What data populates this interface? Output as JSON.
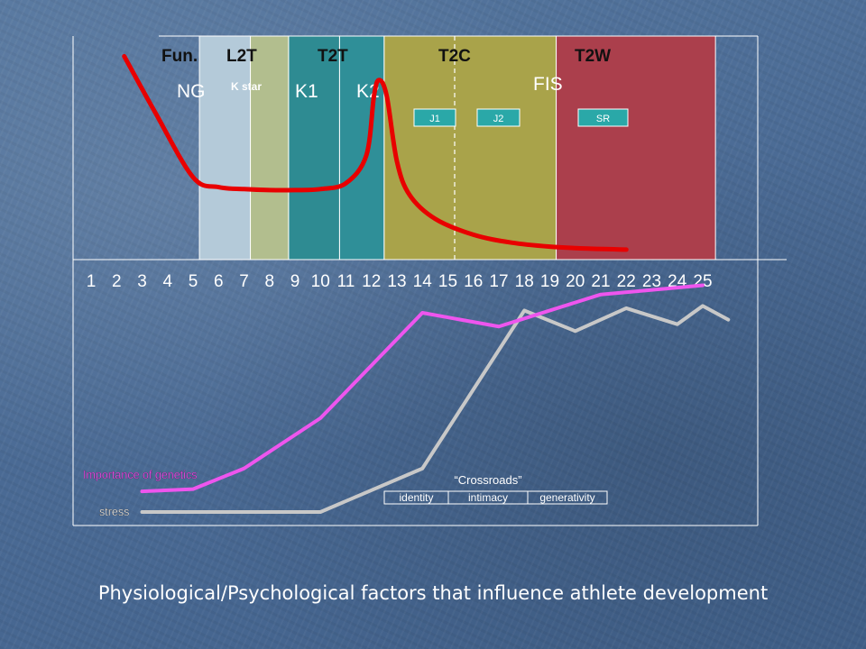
{
  "caption": "Physiological/Psychological factors that influence athlete development",
  "colors": {
    "NG": "#b4cad9",
    "Kstar": "#b2be8e",
    "K1": "#2e8b92",
    "K2": "#2f8f98",
    "T2C": "#a9a34a",
    "T2W": "#ab3f4c",
    "red_curve": "#e80000",
    "genetics": "#ee55ee",
    "stress": "#c8c8c8",
    "box": "#2aa8a8",
    "axis_text": "#ffffff",
    "title_text": "#111111"
  },
  "chart_data": [
    {
      "type": "line",
      "stage_headers": [
        "Fun.",
        "L2T",
        "T2T",
        "T2C",
        "T2W"
      ],
      "bands": [
        {
          "label": "NG",
          "start": 5.25,
          "end": 7.25
        },
        {
          "label": "K star",
          "start": 7.25,
          "end": 8.75
        },
        {
          "label": "K1",
          "start": 8.75,
          "end": 10.75
        },
        {
          "label": "K2",
          "start": 10.75,
          "end": 12.5
        },
        {
          "label": "",
          "start": 12.5,
          "end": 19.25
        },
        {
          "label": "",
          "start": 19.25,
          "end": 25.5
        }
      ],
      "fis_label": "FIS",
      "boxes": [
        "J1",
        "J2",
        "SR"
      ],
      "ylim": [
        0,
        100
      ],
      "series": [
        {
          "x": [
            2.3,
            3.5,
            5.0,
            6.0,
            7.0,
            8.0,
            9.0,
            10.0,
            11.0,
            11.8,
            12.1,
            12.3,
            12.6,
            13.0,
            13.5,
            14.5,
            16.0,
            17.5,
            19.0,
            20.5,
            22.0
          ],
          "values": [
            98,
            70,
            37,
            32,
            31,
            30.5,
            30.5,
            31,
            34,
            48,
            78,
            86,
            78,
            45,
            28,
            16,
            8,
            4,
            2,
            1,
            0.5
          ]
        }
      ]
    },
    {
      "type": "line",
      "x_ticks": [
        "1",
        "2",
        "3",
        "4",
        "5",
        "6",
        "7",
        "8",
        "9",
        "10",
        "11",
        "12",
        "13",
        "14",
        "15",
        "16",
        "17",
        "18",
        "19",
        "20",
        "21",
        "22",
        "23",
        "24",
        "25"
      ],
      "ylim": [
        0,
        100
      ],
      "series": [
        {
          "name": "Importance of genetics",
          "x": [
            3,
            5,
            7,
            10,
            14,
            17,
            21,
            25
          ],
          "values": [
            9,
            10,
            19,
            41,
            87,
            81,
            95,
            99
          ]
        },
        {
          "name": "stress",
          "x": [
            3,
            6,
            10,
            14,
            18,
            20,
            22,
            24,
            25,
            26
          ],
          "values": [
            0,
            0,
            0,
            19,
            88,
            79,
            89,
            82,
            90,
            84
          ]
        }
      ],
      "crossroads": {
        "title": "“Crossroads”",
        "cells": [
          "identity",
          "intimacy",
          "generativity"
        ]
      }
    }
  ]
}
